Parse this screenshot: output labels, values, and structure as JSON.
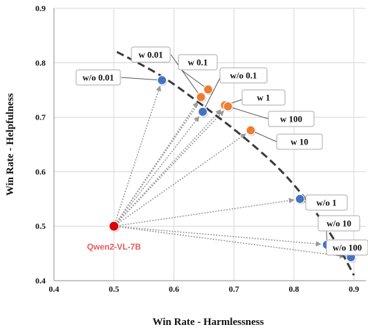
{
  "colors": {
    "arrow": "#9a9a9a",
    "frontier": "#3a3a3a",
    "grid": "#d6d6d6",
    "axis": "#888888",
    "blue": "#4472c4",
    "orange": "#ed7d31",
    "red": "#dd0000",
    "base_label": "#e85a5a",
    "label_border": "#aaaaaa"
  },
  "chart_data": {
    "type": "scatter",
    "xlabel": "Win Rate - Harmlessness",
    "ylabel": "Win Rate - Helpfulness",
    "xlim": [
      0.4,
      0.92
    ],
    "ylim": [
      0.4,
      0.9
    ],
    "xticks": [
      "0.4",
      "0.5",
      "0.6",
      "0.7",
      "0.8",
      "0.9"
    ],
    "yticks": [
      "0.4",
      "0.5",
      "0.6",
      "0.7",
      "0.8",
      "0.9"
    ],
    "grid": true,
    "base": {
      "name": "Qwen2-VL-7B",
      "x": 0.5,
      "y": 0.5
    },
    "frontier": [
      [
        0.505,
        0.82
      ],
      [
        0.58,
        0.775
      ],
      [
        0.65,
        0.72
      ],
      [
        0.72,
        0.66
      ],
      [
        0.78,
        0.6
      ],
      [
        0.83,
        0.535
      ],
      [
        0.87,
        0.47
      ],
      [
        0.9,
        0.41
      ]
    ],
    "series": [
      {
        "name": "blue",
        "color": "blue",
        "points": [
          {
            "label": "w/o 0.01",
            "x": 0.58,
            "y": 0.768
          },
          {
            "label": "w/o 0.1",
            "x": 0.648,
            "y": 0.71
          },
          {
            "label": "w/o 1",
            "x": 0.81,
            "y": 0.55
          },
          {
            "label": "w/o 10",
            "x": 0.855,
            "y": 0.466
          },
          {
            "label": "w/o 100",
            "x": 0.895,
            "y": 0.443
          }
        ]
      },
      {
        "name": "orange",
        "color": "orange",
        "points": [
          {
            "label": "w 0.01",
            "x": 0.645,
            "y": 0.737
          },
          {
            "label": "w 0.1",
            "x": 0.657,
            "y": 0.751
          },
          {
            "label": "w 1",
            "x": 0.685,
            "y": 0.722
          },
          {
            "label": "w 100",
            "x": 0.69,
            "y": 0.72
          },
          {
            "label": "w 10",
            "x": 0.728,
            "y": 0.676
          }
        ]
      }
    ]
  }
}
